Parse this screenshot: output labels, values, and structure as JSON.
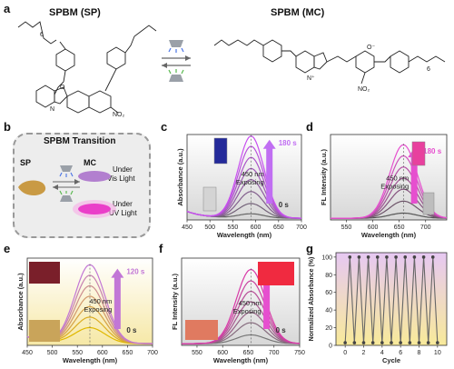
{
  "panel_letters": {
    "a": "a",
    "b": "b",
    "c": "c",
    "d": "d",
    "e": "e",
    "f": "f",
    "g": "g"
  },
  "panel_a": {
    "title_sp": "SPBM (SP)",
    "title_mc": "SPBM (MC)",
    "labels": {
      "no2": "NO₂",
      "n": "N",
      "o": "O",
      "sub6": "6",
      "nplus": "N⁺",
      "ominus": "O⁻"
    }
  },
  "panel_b": {
    "title": "SPBM Transition",
    "sp": "SP",
    "mc": "MC",
    "vis_label": [
      "Under",
      "Vis Light"
    ],
    "uv_label": [
      "Under",
      "UV Light"
    ],
    "colors": {
      "sp": "#c99a44",
      "vis": "#b27fcf",
      "uv": "#ea3fc9",
      "blue_lamp": "#4a74e6",
      "green_lamp": "#56b84c"
    }
  },
  "chart_data": [
    {
      "panel": "c",
      "type": "line",
      "xlabel": "Wavelength (nm)",
      "ylabel": "Absorbance (a.u.)",
      "xticks": [
        450,
        500,
        550,
        600,
        650,
        700
      ],
      "xlim": [
        450,
        700
      ],
      "annotations": {
        "top": "180 s",
        "bottom": "0 s",
        "exposing": [
          "450 nm",
          "Exposing"
        ]
      },
      "peak_wavelength": 590,
      "series": [
        {
          "name": "0 s",
          "peak": 0.05
        },
        {
          "peak": 0.17
        },
        {
          "peak": 0.31
        },
        {
          "peak": 0.45
        },
        {
          "peak": 0.58
        },
        {
          "peak": 0.71
        },
        {
          "peak": 0.84
        },
        {
          "name": "180 s",
          "peak": 0.96
        }
      ]
    },
    {
      "panel": "d",
      "type": "line",
      "xlabel": "Wavelength (nm)",
      "ylabel": "FL Intensity (a.u.)",
      "xticks": [
        550,
        600,
        650,
        700
      ],
      "xlim": [
        520,
        740
      ],
      "annotations": {
        "top": "180 s",
        "bottom": "0 s",
        "exposing": [
          "450 nm",
          "Exposing"
        ]
      },
      "peak_wavelength": 658,
      "series": [
        {
          "name": "0 s",
          "peak": 0.06
        },
        {
          "peak": 0.2
        },
        {
          "peak": 0.34
        },
        {
          "peak": 0.47
        },
        {
          "peak": 0.6
        },
        {
          "peak": 0.73
        },
        {
          "name": "180 s",
          "peak": 0.86
        }
      ]
    },
    {
      "panel": "e",
      "type": "line",
      "xlabel": "Wavelength (nm)",
      "ylabel": "Absorbance (a.u.)",
      "xticks": [
        450,
        500,
        550,
        600,
        650,
        700
      ],
      "xlim": [
        450,
        700
      ],
      "annotations": {
        "top": "120 s",
        "bottom": "0 s",
        "exposing": [
          "450 nm",
          "Exposing"
        ]
      },
      "peak_wavelength": 575,
      "series": [
        {
          "name": "0 s",
          "peak": 0.18
        },
        {
          "peak": 0.3
        },
        {
          "peak": 0.42
        },
        {
          "peak": 0.54
        },
        {
          "peak": 0.66
        },
        {
          "peak": 0.78
        },
        {
          "name": "120 s",
          "peak": 0.9
        }
      ]
    },
    {
      "panel": "f",
      "type": "line",
      "xlabel": "Wavelength (nm)",
      "ylabel": "FL Intensity (a.u.)",
      "xticks": [
        550,
        600,
        650,
        700,
        750
      ],
      "xlim": [
        520,
        750
      ],
      "annotations": {
        "top": "120 s",
        "bottom": "0 s",
        "exposing": [
          "450 nm",
          "Exposing"
        ]
      },
      "peak_wavelength": 655,
      "series": [
        {
          "name": "0 s",
          "peak": 0.1
        },
        {
          "peak": 0.24
        },
        {
          "peak": 0.36
        },
        {
          "peak": 0.48
        },
        {
          "peak": 0.6
        },
        {
          "peak": 0.72
        },
        {
          "name": "120 s",
          "peak": 0.85
        }
      ]
    },
    {
      "panel": "g",
      "type": "line",
      "xlabel": "Cycle",
      "ylabel": "Normalized Absorbance (%)",
      "xticks": [
        0,
        2,
        4,
        6,
        8,
        10
      ],
      "yticks": [
        0,
        20,
        40,
        60,
        80,
        100
      ],
      "xlim": [
        -1,
        11
      ],
      "ylim": [
        0,
        105
      ],
      "x": [
        0,
        0.5,
        1,
        1.5,
        2,
        2.5,
        3,
        3.5,
        4,
        4.5,
        5,
        5.5,
        6,
        6.5,
        7,
        7.5,
        8,
        8.5,
        9,
        9.5,
        10
      ],
      "values": [
        3,
        100,
        3,
        100,
        3,
        100,
        3,
        100,
        3,
        100,
        3,
        100,
        3,
        100,
        3,
        100,
        3,
        100,
        3,
        100,
        3
      ]
    }
  ]
}
